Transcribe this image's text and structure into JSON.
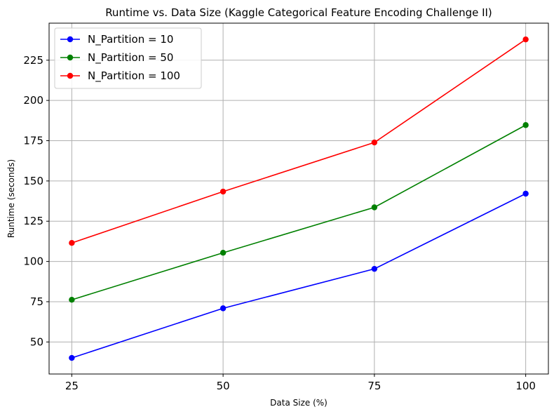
{
  "chart_data": {
    "type": "line",
    "title": "Runtime vs. Data Size (Kaggle Categorical Feature Encoding Challenge II)",
    "xlabel": "Data Size (%)",
    "ylabel": "Runtime (seconds)",
    "x": [
      25,
      50,
      75,
      100
    ],
    "x_ticks": [
      25,
      50,
      75,
      100
    ],
    "y_ticks": [
      50,
      75,
      100,
      125,
      150,
      175,
      200,
      225
    ],
    "xlim": [
      21.25,
      103.75
    ],
    "ylim": [
      30.1,
      248.0
    ],
    "grid": true,
    "legend_position": "top-left",
    "series": [
      {
        "name": "N_Partition = 10",
        "color": "#0000ff",
        "values": [
          40.1,
          70.9,
          95.4,
          142.1
        ]
      },
      {
        "name": "N_Partition = 50",
        "color": "#008000",
        "values": [
          76.2,
          105.4,
          133.6,
          184.7
        ]
      },
      {
        "name": "N_Partition = 100",
        "color": "#ff0000",
        "values": [
          111.5,
          143.4,
          173.9,
          237.9
        ]
      }
    ]
  }
}
